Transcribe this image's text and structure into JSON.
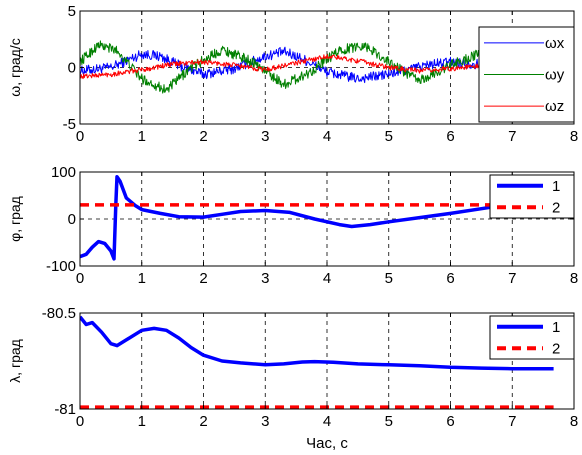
{
  "chart_data": [
    {
      "type": "line",
      "ylabel": "ω, град/с",
      "xlabel": "",
      "xlim": [
        0,
        8
      ],
      "ylim": [
        -5,
        5
      ],
      "xticks": [
        "0",
        "1",
        "2",
        "3",
        "4",
        "5",
        "6",
        "7",
        "8"
      ],
      "yticks": [
        "5",
        "0",
        "-5"
      ],
      "grid": "dashed vertical lines at integer x, dashed horizontal line at y=0",
      "legend_position": "right",
      "noise_amplitude": 0.45,
      "x_end": 6.6,
      "series": [
        {
          "name": "ωx",
          "color": "#0000ff",
          "x": [
            0,
            0.5,
            1.0,
            1.3,
            1.6,
            2.0,
            2.5,
            3.0,
            3.3,
            3.6,
            4.0,
            4.5,
            5.0,
            5.5,
            6.0,
            6.6
          ],
          "y": [
            -0.3,
            0.0,
            1.2,
            1.0,
            0.2,
            -0.6,
            -0.1,
            1.0,
            1.4,
            0.8,
            -0.4,
            -1.0,
            -0.6,
            0.1,
            0.5,
            0.2
          ]
        },
        {
          "name": "ωy",
          "color": "#008000",
          "x": [
            0,
            0.3,
            0.6,
            1.0,
            1.4,
            1.8,
            2.3,
            2.8,
            3.3,
            3.7,
            4.2,
            4.6,
            5.0,
            5.5,
            6.0,
            6.6
          ],
          "y": [
            0.5,
            2.0,
            1.5,
            -1.0,
            -2.0,
            0.0,
            1.6,
            0.5,
            -1.5,
            -0.5,
            1.5,
            2.0,
            0.5,
            -1.2,
            0.2,
            1.5
          ]
        },
        {
          "name": "ωz",
          "color": "#ff0000",
          "x": [
            0,
            0.5,
            1.0,
            1.5,
            2.0,
            2.5,
            3.0,
            3.5,
            4.0,
            4.5,
            5.0,
            5.5,
            6.0,
            6.6
          ],
          "y": [
            -0.8,
            -0.6,
            -0.2,
            0.3,
            0.5,
            0.2,
            -0.2,
            0.4,
            1.0,
            0.6,
            0.0,
            -0.3,
            -0.1,
            0.2
          ]
        }
      ]
    },
    {
      "type": "line",
      "ylabel": "φ, град",
      "xlabel": "",
      "xlim": [
        0,
        8
      ],
      "ylim": [
        -100,
        100
      ],
      "xticks": [
        "0",
        "1",
        "2",
        "3",
        "4",
        "5",
        "6",
        "7",
        "8"
      ],
      "yticks": [
        "100",
        "0",
        "-100"
      ],
      "grid": "dashed vertical lines at integer x, dashed horizontal line at y=0",
      "legend_position": "top-right",
      "series": [
        {
          "name": "1",
          "color": "#0000ff",
          "style": "solid",
          "x": [
            0,
            0.1,
            0.2,
            0.3,
            0.4,
            0.5,
            0.55,
            0.58,
            0.6,
            0.65,
            0.75,
            0.9,
            1.0,
            1.3,
            1.6,
            2.0,
            2.3,
            2.6,
            3.0,
            3.4,
            3.8,
            4.2,
            4.4,
            4.7,
            5.0,
            5.5,
            6.0,
            6.5,
            6.8
          ],
          "y": [
            -80,
            -75,
            -60,
            -48,
            -52,
            -68,
            -85,
            30,
            90,
            80,
            45,
            28,
            20,
            12,
            5,
            4,
            10,
            16,
            18,
            14,
            0,
            -12,
            -16,
            -12,
            -6,
            3,
            12,
            22,
            28
          ]
        },
        {
          "name": "2",
          "color": "#ff0000",
          "style": "dashed",
          "x": [
            0,
            8
          ],
          "y": [
            30,
            30
          ]
        }
      ]
    },
    {
      "type": "line",
      "ylabel": "λ, град",
      "xlabel": "Час, с",
      "xlim": [
        0,
        8
      ],
      "ylim": [
        -81,
        -80.5
      ],
      "xticks": [
        "0",
        "1",
        "2",
        "3",
        "4",
        "5",
        "6",
        "7",
        "8"
      ],
      "yticks": [
        "-80.5",
        "-81"
      ],
      "grid": "dashed vertical lines at integer x",
      "legend_position": "top-right",
      "series": [
        {
          "name": "1",
          "color": "#0000ff",
          "style": "solid",
          "x": [
            0,
            0.1,
            0.2,
            0.35,
            0.5,
            0.6,
            0.8,
            1.0,
            1.2,
            1.4,
            1.6,
            1.8,
            2.0,
            2.3,
            2.6,
            3.0,
            3.3,
            3.6,
            3.8,
            4.1,
            4.5,
            5.0,
            5.5,
            6.0,
            6.5,
            7.0,
            7.67
          ],
          "y": [
            -80.52,
            -80.56,
            -80.55,
            -80.6,
            -80.66,
            -80.67,
            -80.63,
            -80.59,
            -80.58,
            -80.59,
            -80.63,
            -80.68,
            -80.72,
            -80.75,
            -80.76,
            -80.77,
            -80.765,
            -80.755,
            -80.753,
            -80.756,
            -80.765,
            -80.77,
            -80.775,
            -80.783,
            -80.787,
            -80.79,
            -80.79
          ]
        },
        {
          "name": "2",
          "color": "#ff0000",
          "style": "dashed",
          "x": [
            0,
            7.67
          ],
          "y": [
            -80.99,
            -80.99
          ]
        }
      ]
    }
  ]
}
